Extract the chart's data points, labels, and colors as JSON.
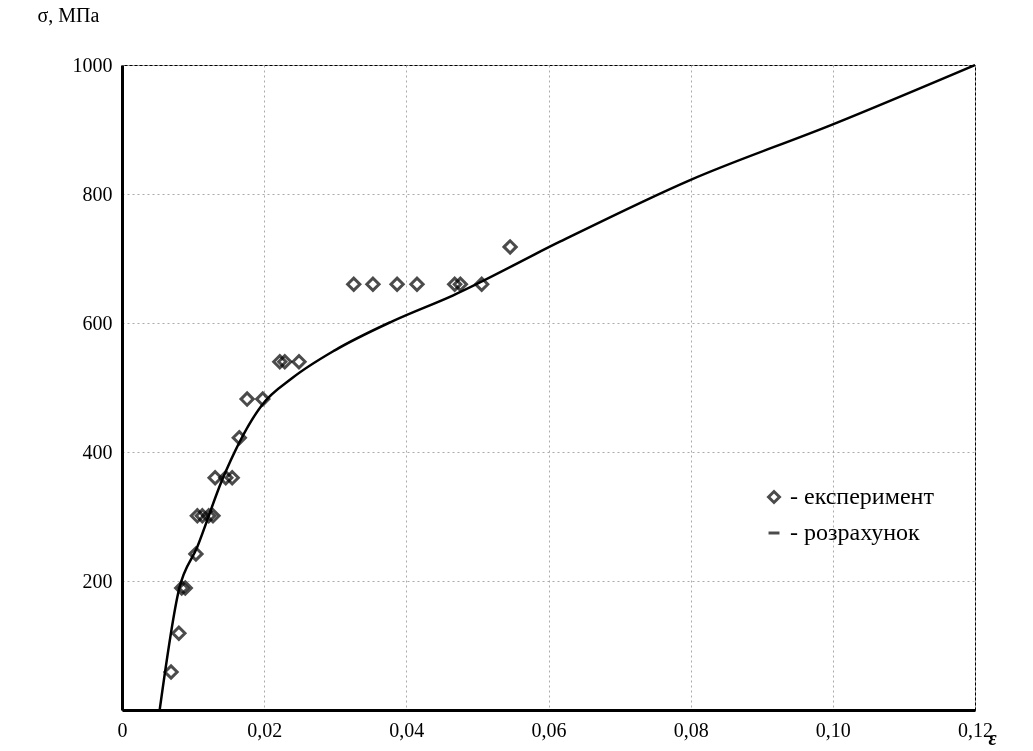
{
  "chart_data": {
    "type": "scatter",
    "xlabel": "ε",
    "ylabel": "σ, МПа",
    "xlim": [
      0,
      0.12
    ],
    "ylim": [
      0,
      1000
    ],
    "xticks": [
      {
        "value": 0,
        "label": "0"
      },
      {
        "value": 0.02,
        "label": "0,02"
      },
      {
        "value": 0.04,
        "label": "0,04"
      },
      {
        "value": 0.06,
        "label": "0,06"
      },
      {
        "value": 0.08,
        "label": "0,08"
      },
      {
        "value": 0.1,
        "label": "0,10"
      },
      {
        "value": 0.12,
        "label": "0,12"
      }
    ],
    "yticks": [
      200,
      400,
      600,
      800,
      1000
    ],
    "grid": true,
    "legend": "right",
    "series": [
      {
        "name": "- експеримент",
        "marker": "diamond",
        "color": "#000000",
        "x": [
          0.0069,
          0.008,
          0.0084,
          0.0089,
          0.0104,
          0.0106,
          0.0113,
          0.0122,
          0.0128,
          0.0131,
          0.0146,
          0.0155,
          0.0165,
          0.0176,
          0.0198,
          0.0222,
          0.0229,
          0.0249,
          0.0326,
          0.0353,
          0.0387,
          0.0415,
          0.0468,
          0.0476,
          0.0506,
          0.0546
        ],
        "values": [
          59,
          119,
          189,
          189,
          242,
          301,
          301,
          301,
          301,
          360,
          360,
          360,
          422,
          482,
          482,
          540,
          540,
          540,
          660,
          660,
          660,
          660,
          660,
          660,
          660,
          718
        ]
      },
      {
        "name": "- розрахунок",
        "type": "line",
        "color": "#000000",
        "x": [
          0.0053,
          0.008,
          0.0106,
          0.0141,
          0.0197,
          0.024,
          0.03,
          0.0381,
          0.0466,
          0.0616,
          0.08,
          0.1,
          0.12
        ],
        "values": [
          0,
          186,
          253,
          357,
          473,
          515,
          558,
          603,
          643,
          726,
          822,
          908,
          1000
        ]
      }
    ]
  }
}
